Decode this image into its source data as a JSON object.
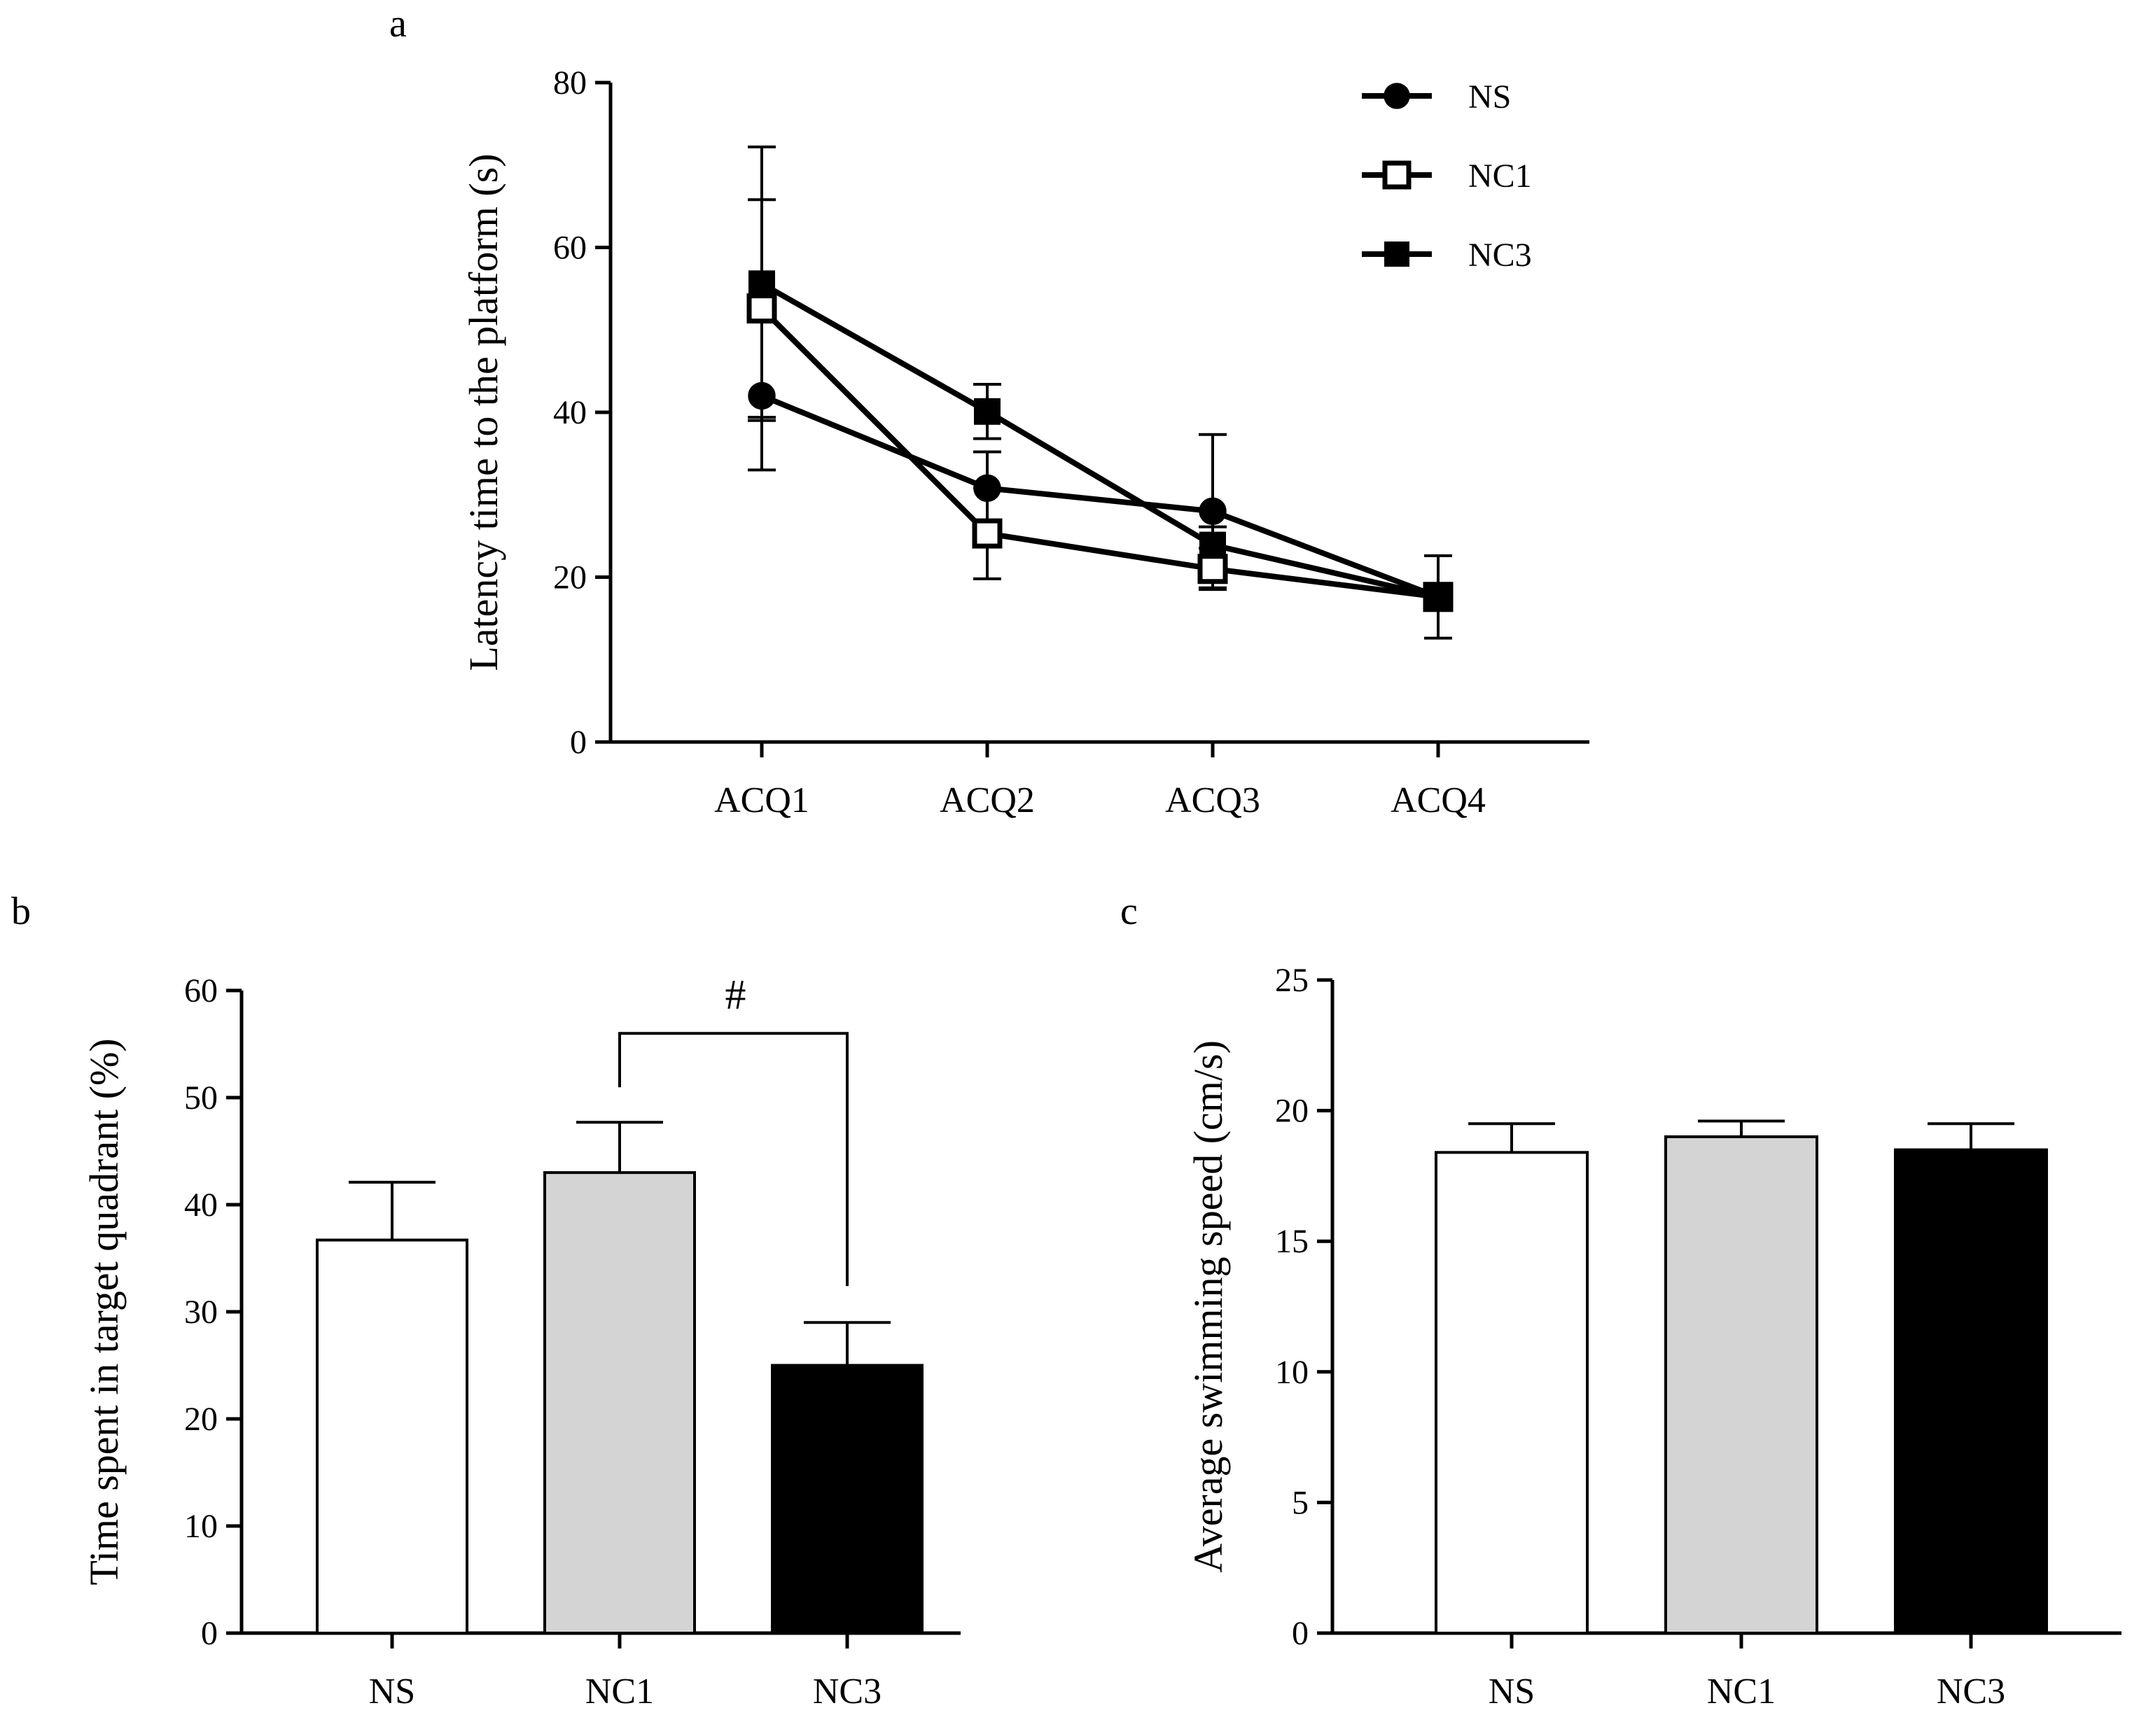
{
  "chart_data": [
    {
      "panel": "a",
      "type": "line",
      "categories": [
        "ACQ1",
        "ACQ2",
        "ACQ3",
        "ACQ4"
      ],
      "ylabel": "Latency time to the platform (s)",
      "xlabel": "",
      "ylim": [
        0,
        80
      ],
      "yticks": [
        0,
        20,
        40,
        60,
        80
      ],
      "legend_position": "top-right",
      "series": [
        {
          "name": "NS",
          "marker": "filled-circle",
          "values": [
            42.0,
            30.8,
            28.0,
            17.6
          ],
          "err": [
            9.0,
            4.4,
            9.3,
            5.0
          ]
        },
        {
          "name": "NC1",
          "marker": "open-square",
          "values": [
            52.6,
            25.3,
            21.0,
            17.6
          ],
          "err": [
            13.2,
            5.5,
            2.5,
            1.5
          ]
        },
        {
          "name": "NC3",
          "marker": "filled-square",
          "values": [
            55.6,
            40.1,
            23.9,
            17.6
          ],
          "err": [
            16.6,
            3.3,
            2.2,
            1.6
          ]
        }
      ]
    },
    {
      "panel": "b",
      "type": "bar",
      "categories": [
        "NS",
        "NC1",
        "NC3"
      ],
      "values": [
        36.7,
        43.0,
        25.0
      ],
      "err": [
        5.4,
        4.7,
        4.0
      ],
      "fills": [
        "#ffffff",
        "#d4d4d4",
        "#000000"
      ],
      "ylabel": "Time spent in target quadrant (%)",
      "xlabel": "",
      "ylim": [
        0,
        60
      ],
      "yticks": [
        0,
        10,
        20,
        30,
        40,
        50,
        60
      ],
      "annotation": {
        "text": "#",
        "between": [
          "NC1",
          "NC3"
        ]
      }
    },
    {
      "panel": "c",
      "type": "bar",
      "categories": [
        "NS",
        "NC1",
        "NC3"
      ],
      "values": [
        18.4,
        19.0,
        18.5
      ],
      "err": [
        1.1,
        0.6,
        1.0
      ],
      "fills": [
        "#ffffff",
        "#d4d4d4",
        "#000000"
      ],
      "ylabel": "Average swimming speed (cm/s)",
      "xlabel": "",
      "ylim": [
        0,
        25
      ],
      "yticks": [
        0,
        5,
        10,
        15,
        20,
        25
      ]
    }
  ]
}
